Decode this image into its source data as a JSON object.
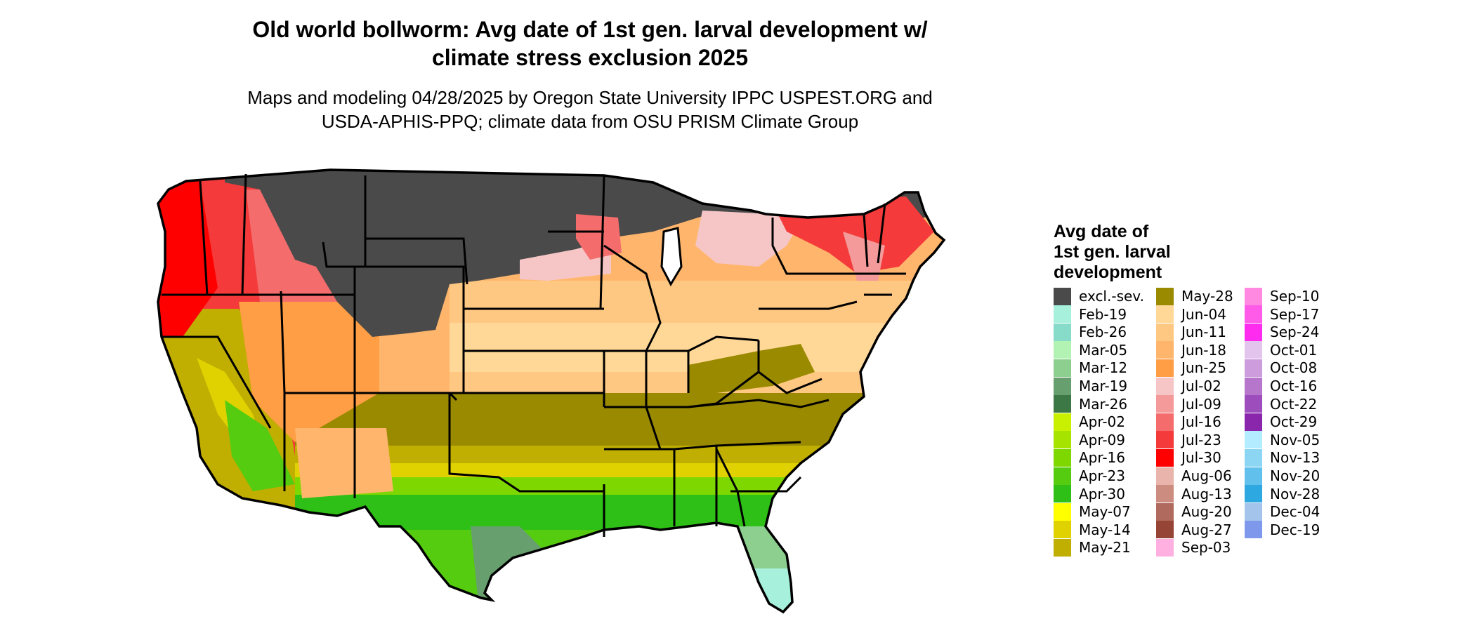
{
  "title": {
    "line1": "Old world bollworm: Avg date of 1st gen. larval development w/",
    "line2": "climate stress exclusion 2025"
  },
  "subtitle": {
    "line1": "Maps and modeling 04/28/2025 by Oregon State University IPPC USPEST.ORG and",
    "line2": "USDA-APHIS-PPQ; climate data from OSU PRISM Climate Group"
  },
  "legend": {
    "title_lines": [
      "Avg date of",
      "1st gen. larval",
      "development"
    ],
    "items": [
      {
        "label": "excl.-sev.",
        "color": "#4a4a4a"
      },
      {
        "label": "Feb-19",
        "color": "#a6f0dc"
      },
      {
        "label": "Feb-26",
        "color": "#86dcc8"
      },
      {
        "label": "Mar-05",
        "color": "#b2f2b2"
      },
      {
        "label": "Mar-12",
        "color": "#8ccf8e"
      },
      {
        "label": "Mar-19",
        "color": "#67a06e"
      },
      {
        "label": "Mar-26",
        "color": "#3c7845"
      },
      {
        "label": "Apr-02",
        "color": "#c8f000"
      },
      {
        "label": "Apr-09",
        "color": "#a6e400"
      },
      {
        "label": "Apr-16",
        "color": "#7ed800"
      },
      {
        "label": "Apr-23",
        "color": "#56cc10"
      },
      {
        "label": "Apr-30",
        "color": "#2ec016"
      },
      {
        "label": "May-07",
        "color": "#ffff00"
      },
      {
        "label": "May-14",
        "color": "#e0d200"
      },
      {
        "label": "May-21",
        "color": "#c0ae00"
      },
      {
        "label": "May-28",
        "color": "#9a8a00"
      },
      {
        "label": "Jun-04",
        "color": "#ffd898"
      },
      {
        "label": "Jun-11",
        "color": "#ffc882"
      },
      {
        "label": "Jun-18",
        "color": "#ffb66c"
      },
      {
        "label": "Jun-25",
        "color": "#ff9e44"
      },
      {
        "label": "Jul-02",
        "color": "#f6c6c6"
      },
      {
        "label": "Jul-09",
        "color": "#f49a9a"
      },
      {
        "label": "Jul-16",
        "color": "#f46c6c"
      },
      {
        "label": "Jul-23",
        "color": "#f43a3a"
      },
      {
        "label": "Jul-30",
        "color": "#ff0000"
      },
      {
        "label": "Aug-06",
        "color": "#e8b4ac"
      },
      {
        "label": "Aug-13",
        "color": "#cc8c80"
      },
      {
        "label": "Aug-20",
        "color": "#b06a5e"
      },
      {
        "label": "Aug-27",
        "color": "#964436"
      },
      {
        "label": "Sep-03",
        "color": "#ffb0e0"
      },
      {
        "label": "Sep-10",
        "color": "#ff88e0"
      },
      {
        "label": "Sep-17",
        "color": "#ff5ae8"
      },
      {
        "label": "Sep-24",
        "color": "#ff2cf0"
      },
      {
        "label": "Oct-01",
        "color": "#e2c4ec"
      },
      {
        "label": "Oct-08",
        "color": "#cc9cdc"
      },
      {
        "label": "Oct-16",
        "color": "#b676cc"
      },
      {
        "label": "Oct-22",
        "color": "#9e4ebc"
      },
      {
        "label": "Oct-29",
        "color": "#8a26ac"
      },
      {
        "label": "Nov-05",
        "color": "#b4ecff"
      },
      {
        "label": "Nov-13",
        "color": "#8cd6f4"
      },
      {
        "label": "Nov-20",
        "color": "#62c0ec"
      },
      {
        "label": "Nov-28",
        "color": "#2ea8e0"
      },
      {
        "label": "Dec-04",
        "color": "#a4c4ec"
      },
      {
        "label": "Dec-19",
        "color": "#7e98ec"
      }
    ]
  }
}
